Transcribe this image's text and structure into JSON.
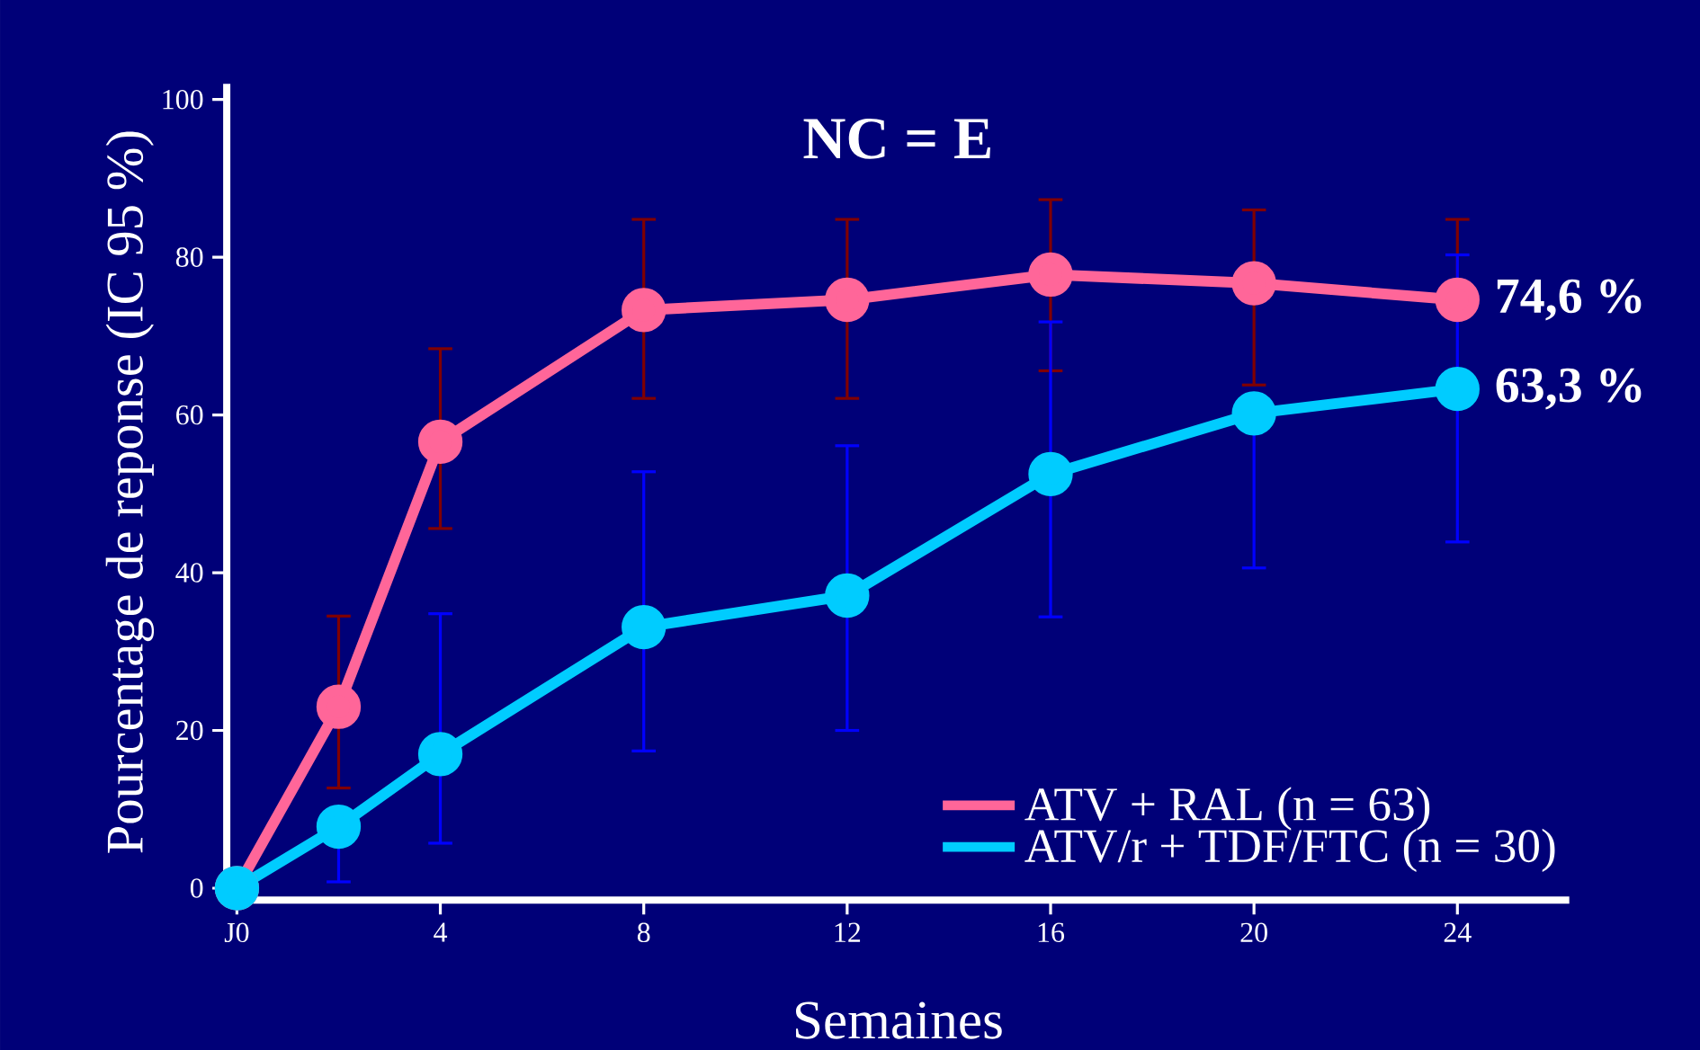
{
  "chart_data": {
    "type": "line",
    "title": "NC = E",
    "xlabel": "Semaines",
    "ylabel": "Pourcentage de reponse (IC 95 %)",
    "x": [
      0,
      2,
      4,
      8,
      12,
      16,
      20,
      24
    ],
    "series": [
      {
        "name": "ATV + RAL (n = 63)",
        "color": "#ff6699",
        "values": [
          0,
          23.0,
          56.6,
          73.3,
          74.6,
          77.8,
          76.7,
          74.6
        ],
        "errors": [
          null,
          [
            12.7,
            34.5
          ],
          [
            45.6,
            68.4
          ],
          [
            62.1,
            84.8
          ],
          [
            62.1,
            84.8
          ],
          [
            65.6,
            87.3
          ],
          [
            63.8,
            86.0
          ],
          [
            74.6,
            84.8
          ]
        ]
      },
      {
        "name": "ATV/r + TDF/FTC (n = 30)",
        "color": "#00ccff",
        "values": [
          0,
          7.8,
          17.0,
          33.1,
          37.1,
          52.5,
          60.2,
          63.3
        ],
        "errors": [
          null,
          [
            0.8,
            7.8
          ],
          [
            5.7,
            34.8
          ],
          [
            17.4,
            52.8
          ],
          [
            20.0,
            56.1
          ],
          [
            34.4,
            71.8
          ],
          [
            40.6,
            60.2
          ],
          [
            43.9,
            80.3
          ]
        ]
      }
    ],
    "annotations": [
      {
        "text": "74,6 %",
        "x": 24,
        "y": 74.6
      },
      {
        "text": "63,3 %",
        "x": 24,
        "y": 63.3
      }
    ],
    "xlim": [
      -0.2,
      26.2
    ],
    "ylim": [
      -1.5,
      102
    ],
    "xticks": [
      {
        "value": 0,
        "label": "J0"
      },
      4,
      8,
      12,
      16,
      20,
      24
    ],
    "yticks": [
      0,
      20,
      40,
      60,
      80,
      100
    ],
    "grid": false,
    "legend": "bottom right",
    "marker": "circle",
    "line_style": "solid"
  }
}
